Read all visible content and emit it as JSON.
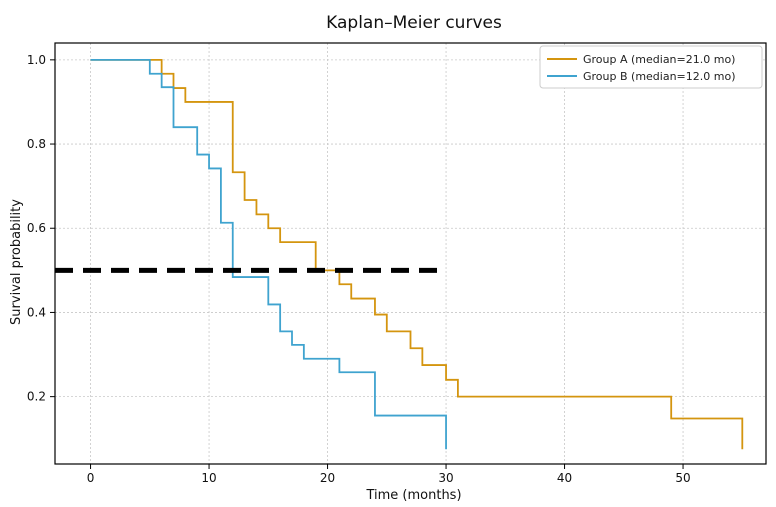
{
  "chart_data": {
    "type": "line",
    "title": "Kaplan–Meier curves",
    "xlabel": "Time (months)",
    "ylabel": "Survival probability",
    "xlim": [
      -3,
      57
    ],
    "ylim": [
      0.04,
      1.04
    ],
    "x_ticks": [
      0,
      10,
      20,
      30,
      40,
      50
    ],
    "y_ticks": [
      0.2,
      0.4,
      0.6,
      0.8,
      1.0
    ],
    "x_tick_labels": [
      "0",
      "10",
      "20",
      "30",
      "40",
      "50"
    ],
    "y_tick_labels": [
      "0.2",
      "0.4",
      "0.6",
      "0.8",
      "1.0"
    ],
    "grid": true,
    "legend": "top-right",
    "series": [
      {
        "name": "Group A (median=21.0 mo)",
        "color": "#d4950f",
        "step": "post",
        "x": [
          0,
          6,
          7,
          8,
          12,
          13,
          14,
          15,
          16,
          17,
          19,
          21,
          22,
          24,
          25,
          27,
          28,
          30,
          31,
          49,
          55
        ],
        "y": [
          1.0,
          0.967,
          0.933,
          0.9,
          0.733,
          0.667,
          0.633,
          0.6,
          0.567,
          0.567,
          0.5,
          0.467,
          0.433,
          0.395,
          0.355,
          0.315,
          0.275,
          0.24,
          0.2,
          0.148,
          0.075
        ]
      },
      {
        "name": "Group B (median=12.0 mo)",
        "color": "#3fa3cf",
        "step": "post",
        "x": [
          0,
          5,
          6,
          7,
          9,
          10,
          11,
          12,
          15,
          16,
          17,
          18,
          21,
          24,
          30
        ],
        "y": [
          1.0,
          0.967,
          0.935,
          0.84,
          0.775,
          0.742,
          0.613,
          0.484,
          0.419,
          0.355,
          0.323,
          0.29,
          0.258,
          0.155,
          0.075
        ]
      }
    ],
    "reference_line": {
      "y": 0.5,
      "x": [
        -3,
        30
      ],
      "color": "#000000",
      "style": "dashed"
    }
  }
}
